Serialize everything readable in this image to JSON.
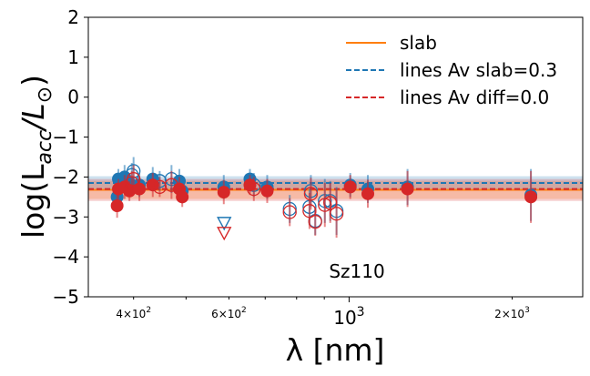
{
  "chart_data": {
    "type": "scatter",
    "title": "",
    "annotation": "Sz110",
    "xlabel": "λ [nm]",
    "ylabel": "log(L_acc/L_⊙)",
    "xscale": "log",
    "xlim": [
      330,
      2700
    ],
    "ylim": [
      -5,
      2
    ],
    "xticks": [
      {
        "value": 400,
        "base": "4×10",
        "exp": "2"
      },
      {
        "value": 600,
        "base": "6×10",
        "exp": "2"
      },
      {
        "value": 1000,
        "base": "10",
        "exp": "3"
      },
      {
        "value": 2000,
        "base": "2×10",
        "exp": "3"
      }
    ],
    "yticks": [
      2,
      1,
      0,
      -1,
      -2,
      -3,
      -4,
      -5
    ],
    "legend": {
      "position": "top-right",
      "entries": [
        {
          "label": "slab",
          "style": "solid",
          "color": "#ff7f0e"
        },
        {
          "label": "lines Av slab=0.3",
          "style": "dashed",
          "color": "#1f77b4"
        },
        {
          "label": "lines Av diff=0.0",
          "style": "dashed",
          "color": "#d62728"
        }
      ]
    },
    "reference_lines": [
      {
        "name": "slab",
        "y": -2.32,
        "band": [
          -2.55,
          -2.1
        ],
        "color": "#ff7f0e",
        "style": "solid"
      },
      {
        "name": "lines Av slab=0.3",
        "y": -2.15,
        "band": [
          -2.3,
          -1.98
        ],
        "color": "#1f77b4",
        "style": "dashed"
      },
      {
        "name": "lines Av diff=0.0",
        "y": -2.3,
        "band": [
          -2.6,
          -2.05
        ],
        "color": "#d62728",
        "style": "dashed"
      }
    ],
    "series": [
      {
        "name": "lines Av slab=0.3",
        "color": "#1f77b4",
        "points": [
          {
            "x": 373,
            "y": -2.5,
            "err": 0.3,
            "filled": true
          },
          {
            "x": 375,
            "y": -2.05,
            "err": 0.25,
            "filled": true
          },
          {
            "x": 385,
            "y": -2.0,
            "err": 0.3,
            "filled": true
          },
          {
            "x": 393,
            "y": -2.15,
            "err": 0.25,
            "filled": true
          },
          {
            "x": 397,
            "y": -1.95,
            "err": 0.3,
            "filled": false
          },
          {
            "x": 400,
            "y": -1.85,
            "err": 0.35,
            "filled": false
          },
          {
            "x": 410,
            "y": -2.2,
            "err": 0.3,
            "filled": true
          },
          {
            "x": 434,
            "y": -2.05,
            "err": 0.3,
            "filled": true
          },
          {
            "x": 447,
            "y": -2.1,
            "err": 0.25,
            "filled": false
          },
          {
            "x": 470,
            "y": -2.05,
            "err": 0.35,
            "filled": false
          },
          {
            "x": 486,
            "y": -2.1,
            "err": 0.3,
            "filled": true
          },
          {
            "x": 492,
            "y": -2.35,
            "err": 0.25,
            "filled": true
          },
          {
            "x": 587,
            "y": -2.25,
            "err": 0.3,
            "filled": true
          },
          {
            "x": 588,
            "y": -3.15,
            "err": 0,
            "filled": false,
            "marker": "triangle"
          },
          {
            "x": 656,
            "y": -2.05,
            "err": 0.25,
            "filled": true
          },
          {
            "x": 667,
            "y": -2.2,
            "err": 0.3,
            "filled": false
          },
          {
            "x": 706,
            "y": -2.25,
            "err": 0.3,
            "filled": true
          },
          {
            "x": 777,
            "y": -2.8,
            "err": 0.35,
            "filled": false
          },
          {
            "x": 845,
            "y": -2.75,
            "err": 0.45,
            "filled": false
          },
          {
            "x": 850,
            "y": -2.35,
            "err": 0.4,
            "filled": false
          },
          {
            "x": 866,
            "y": -3.1,
            "err": 0.35,
            "filled": false
          },
          {
            "x": 902,
            "y": -2.6,
            "err": 0.55,
            "filled": false
          },
          {
            "x": 923,
            "y": -2.6,
            "err": 0.5,
            "filled": false
          },
          {
            "x": 948,
            "y": -2.85,
            "err": 0.6,
            "filled": false
          },
          {
            "x": 1005,
            "y": -2.2,
            "err": 0.3,
            "filled": true
          },
          {
            "x": 1083,
            "y": -2.3,
            "err": 0.35,
            "filled": true
          },
          {
            "x": 1282,
            "y": -2.25,
            "err": 0.45,
            "filled": true
          },
          {
            "x": 2166,
            "y": -2.45,
            "err": 0.65,
            "filled": true
          }
        ]
      },
      {
        "name": "lines Av diff=0.0",
        "color": "#d62728",
        "points": [
          {
            "x": 373,
            "y": -2.72,
            "err": 0.3,
            "filled": true
          },
          {
            "x": 375,
            "y": -2.3,
            "err": 0.25,
            "filled": true
          },
          {
            "x": 385,
            "y": -2.25,
            "err": 0.3,
            "filled": true
          },
          {
            "x": 393,
            "y": -2.35,
            "err": 0.25,
            "filled": true
          },
          {
            "x": 397,
            "y": -2.15,
            "err": 0.3,
            "filled": false
          },
          {
            "x": 400,
            "y": -2.05,
            "err": 0.35,
            "filled": false
          },
          {
            "x": 410,
            "y": -2.3,
            "err": 0.3,
            "filled": true
          },
          {
            "x": 434,
            "y": -2.2,
            "err": 0.3,
            "filled": true
          },
          {
            "x": 447,
            "y": -2.25,
            "err": 0.25,
            "filled": false
          },
          {
            "x": 470,
            "y": -2.2,
            "err": 0.35,
            "filled": false
          },
          {
            "x": 486,
            "y": -2.3,
            "err": 0.3,
            "filled": true
          },
          {
            "x": 492,
            "y": -2.5,
            "err": 0.25,
            "filled": true
          },
          {
            "x": 587,
            "y": -2.38,
            "err": 0.3,
            "filled": true
          },
          {
            "x": 588,
            "y": -3.4,
            "err": 0,
            "filled": false,
            "marker": "triangle"
          },
          {
            "x": 656,
            "y": -2.2,
            "err": 0.25,
            "filled": true
          },
          {
            "x": 667,
            "y": -2.3,
            "err": 0.3,
            "filled": false
          },
          {
            "x": 706,
            "y": -2.35,
            "err": 0.3,
            "filled": true
          },
          {
            "x": 777,
            "y": -2.88,
            "err": 0.35,
            "filled": false
          },
          {
            "x": 845,
            "y": -2.85,
            "err": 0.45,
            "filled": false
          },
          {
            "x": 850,
            "y": -2.42,
            "err": 0.4,
            "filled": false
          },
          {
            "x": 866,
            "y": -3.12,
            "err": 0.35,
            "filled": false
          },
          {
            "x": 902,
            "y": -2.7,
            "err": 0.55,
            "filled": false
          },
          {
            "x": 923,
            "y": -2.65,
            "err": 0.5,
            "filled": false
          },
          {
            "x": 948,
            "y": -2.92,
            "err": 0.6,
            "filled": false
          },
          {
            "x": 1005,
            "y": -2.25,
            "err": 0.3,
            "filled": true
          },
          {
            "x": 1083,
            "y": -2.42,
            "err": 0.35,
            "filled": true
          },
          {
            "x": 1282,
            "y": -2.3,
            "err": 0.45,
            "filled": true
          },
          {
            "x": 2166,
            "y": -2.5,
            "err": 0.65,
            "filled": true
          }
        ]
      }
    ]
  }
}
